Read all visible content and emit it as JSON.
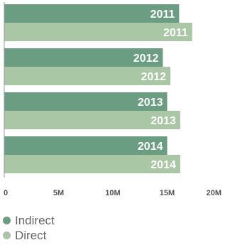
{
  "chart_data": {
    "type": "bar",
    "orientation": "horizontal",
    "categories": [
      "2011",
      "2012",
      "2013",
      "2014"
    ],
    "series": [
      {
        "name": "Indirect",
        "color": "#6a9d82",
        "values": [
          16.1,
          14.6,
          15.0,
          15.0
        ]
      },
      {
        "name": "Direct",
        "color": "#a9c6a5",
        "values": [
          17.3,
          15.3,
          16.2,
          16.2
        ]
      }
    ],
    "xlim": [
      0,
      20
    ],
    "x_ticks": [
      "0",
      "5M",
      "10M",
      "15M",
      "20M"
    ],
    "x_tick_values": [
      0,
      5,
      10,
      15,
      20
    ],
    "grid": false,
    "legend_position": "bottom-left",
    "bar_labels": "category"
  }
}
